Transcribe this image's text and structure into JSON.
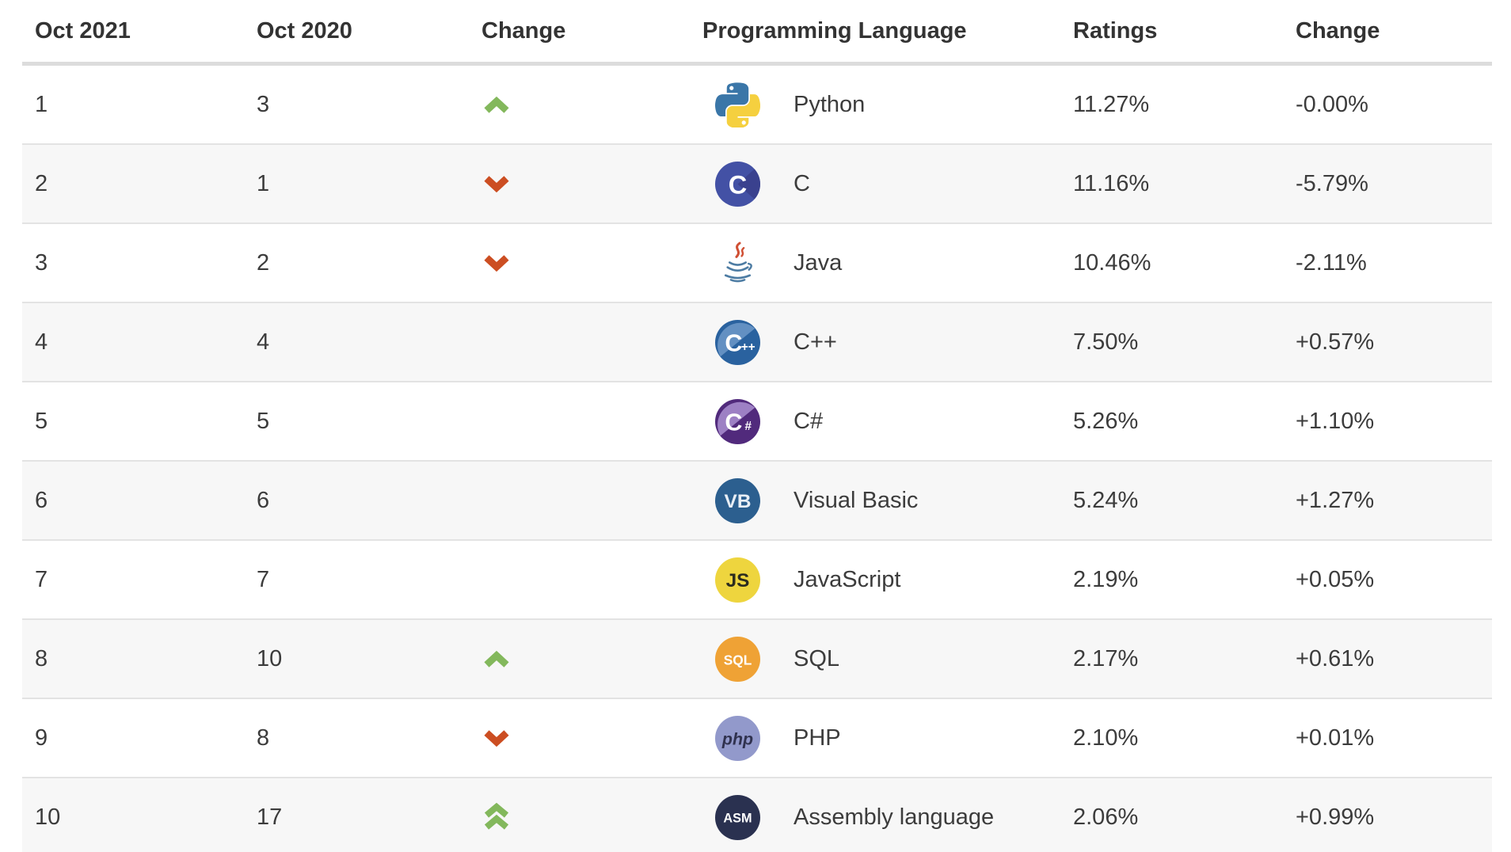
{
  "table": {
    "headers": [
      "Oct 2021",
      "Oct 2020",
      "Change",
      "Programming Language",
      "Ratings",
      "Change"
    ],
    "rows": [
      {
        "oct2021": "1",
        "oct2020": "3",
        "trend": "up",
        "icon": "python",
        "language": "Python",
        "ratings": "11.27%",
        "change": "-0.00%"
      },
      {
        "oct2021": "2",
        "oct2020": "1",
        "trend": "down",
        "icon": "c",
        "language": "C",
        "ratings": "11.16%",
        "change": "-5.79%"
      },
      {
        "oct2021": "3",
        "oct2020": "2",
        "trend": "down",
        "icon": "java",
        "language": "Java",
        "ratings": "10.46%",
        "change": "-2.11%"
      },
      {
        "oct2021": "4",
        "oct2020": "4",
        "trend": "none",
        "icon": "cpp",
        "language": "C++",
        "ratings": "7.50%",
        "change": "+0.57%"
      },
      {
        "oct2021": "5",
        "oct2020": "5",
        "trend": "none",
        "icon": "csharp",
        "language": "C#",
        "ratings": "5.26%",
        "change": "+1.10%"
      },
      {
        "oct2021": "6",
        "oct2020": "6",
        "trend": "none",
        "icon": "vb",
        "language": "Visual Basic",
        "ratings": "5.24%",
        "change": "+1.27%"
      },
      {
        "oct2021": "7",
        "oct2020": "7",
        "trend": "none",
        "icon": "js",
        "language": "JavaScript",
        "ratings": "2.19%",
        "change": "+0.05%"
      },
      {
        "oct2021": "8",
        "oct2020": "10",
        "trend": "up",
        "icon": "sql",
        "language": "SQL",
        "ratings": "2.17%",
        "change": "+0.61%"
      },
      {
        "oct2021": "9",
        "oct2020": "8",
        "trend": "down",
        "icon": "php",
        "language": "PHP",
        "ratings": "2.10%",
        "change": "+0.01%"
      },
      {
        "oct2021": "10",
        "oct2020": "17",
        "trend": "double-up",
        "icon": "asm",
        "language": "Assembly language",
        "ratings": "2.06%",
        "change": "+0.99%"
      }
    ]
  },
  "icons": {
    "python": {
      "shape": "python",
      "blue": "#3a76a8",
      "yellow": "#f5d03f"
    },
    "c": {
      "shape": "letter",
      "bg": "#4351a5",
      "wedge": "#3a418e",
      "wedge_side": "right",
      "label": "C",
      "label_size": 32,
      "fg": "#ffffff"
    },
    "java": {
      "shape": "java",
      "steam": "#d04f33",
      "cup": "#4d7ca3"
    },
    "cpp": {
      "shape": "letter",
      "bg": "#2a629f",
      "wedge": "#6390c2",
      "wedge_side": "topleft",
      "label": "C",
      "label_size": 30,
      "sub": "++",
      "sub_size": 15,
      "fg": "#ffffff"
    },
    "csharp": {
      "shape": "letter",
      "bg": "#512a7c",
      "wedge": "#9d80c4",
      "wedge_side": "topleft",
      "label": "C",
      "label_size": 30,
      "sub": "#",
      "sub_size": 15,
      "fg": "#ffffff"
    },
    "vb": {
      "shape": "letter",
      "bg": "#2c5f8f",
      "label": "VB",
      "label_size": 24,
      "fg": "#e8eef5"
    },
    "js": {
      "shape": "letter",
      "bg": "#eed53e",
      "label": "JS",
      "label_size": 24,
      "fg": "#2c2c1f"
    },
    "sql": {
      "shape": "letter",
      "bg": "#efa235",
      "label": "SQL",
      "label_size": 17,
      "fg": "#ffffff"
    },
    "php": {
      "shape": "letter",
      "bg": "#9299cb",
      "label": "php",
      "label_size": 21,
      "fg": "#30324f",
      "italic": true
    },
    "asm": {
      "shape": "letter",
      "bg": "#2a3150",
      "label": "ASM",
      "label_size": 16,
      "fg": "#ffffff"
    }
  },
  "colors": {
    "trend_up": "#83b85c",
    "trend_down": "#cc4e22",
    "row_stripe": "#f7f7f7",
    "row_border": "#e3e3e3",
    "header_border": "#dcdcdc",
    "text": "#3c3c3c",
    "header_text": "#333333"
  }
}
